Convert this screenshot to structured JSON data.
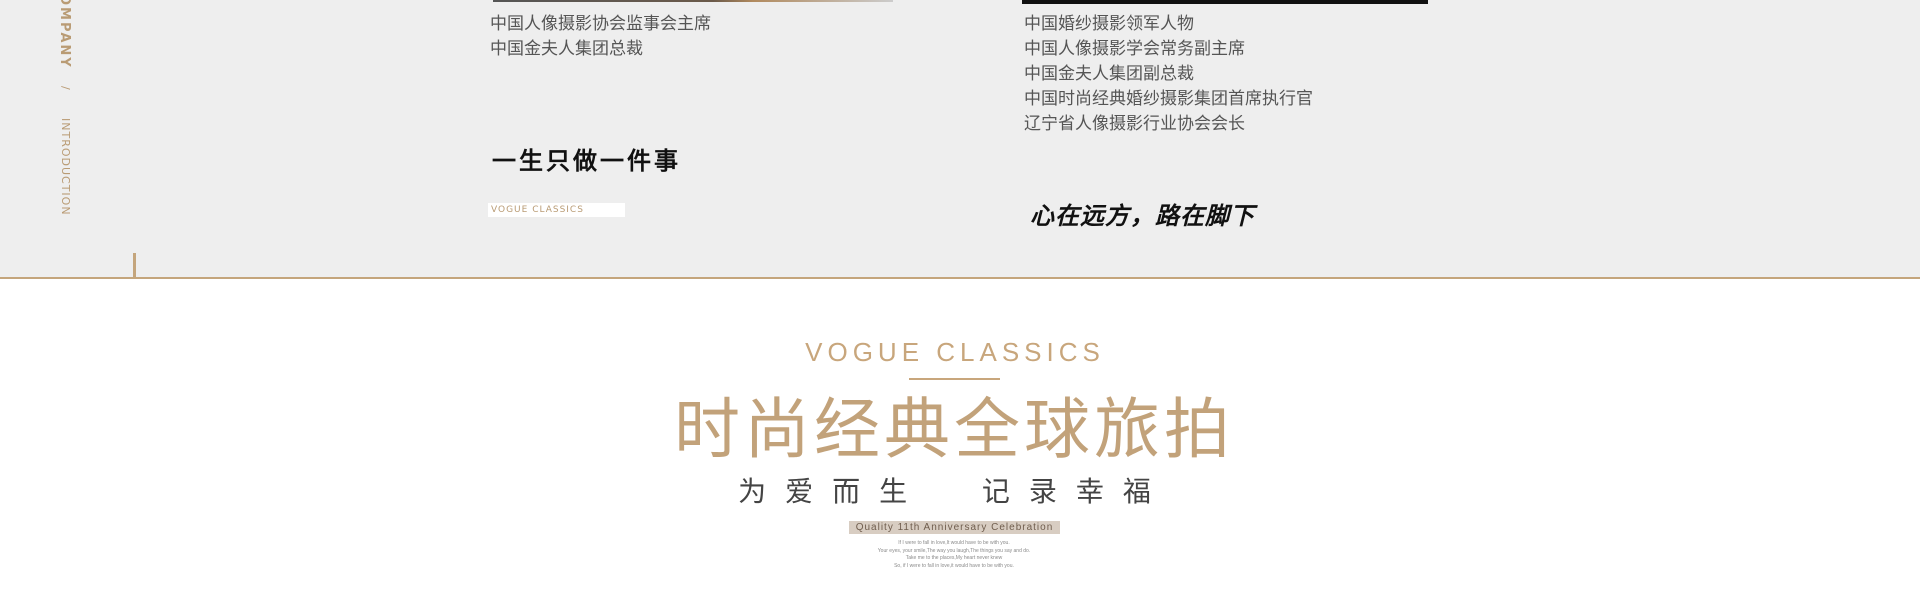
{
  "side_nav": {
    "company_label": "OMPANY",
    "separator": "/",
    "intro_label": "INTRODUCTION"
  },
  "profile_left": {
    "titles": [
      "中国人像摄影协会监事会主席",
      "中国金夫人集团总裁"
    ],
    "motto": "一生只做一件事",
    "tag": "VOGUE CLASSICS"
  },
  "profile_right": {
    "titles": [
      "中国婚纱摄影领军人物",
      "中国人像摄影学会常务副主席",
      "中国金夫人集团副总裁",
      "中国时尚经典婚纱摄影集团首席执行官",
      "辽宁省人像摄影行业协会会长"
    ],
    "motto": "心在远方，路在脚下"
  },
  "feature": {
    "eyebrow": "VOGUE CLASSICS",
    "headline": "时尚经典全球旅拍",
    "tagline": "为爱而生  记录幸福",
    "badge": "Quality 11th Anniversary Celebration",
    "small_lines": [
      "If I were to fall in love,It would have to be with you.",
      "Your eyes, your smile,The way you laugh,The things you say and do.",
      "Take me to the places,My heart never knew",
      "So, if I were to fall in love,it would have to be with you."
    ]
  },
  "colors": {
    "accent": "#c2a27a",
    "top_bg": "#eeeeee",
    "text": "#555555"
  }
}
